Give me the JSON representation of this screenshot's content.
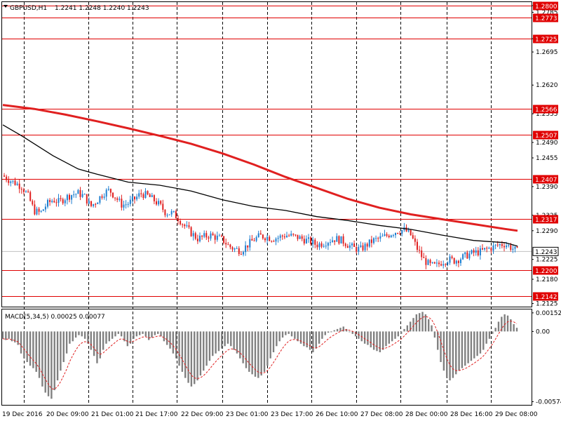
{
  "header": {
    "symbol": "GBPUSD,H1",
    "ohlc": "1.2241 1.2248 1.2240 1.2243"
  },
  "macd_label": "MACD(5,34,5) 0.00025 0.00077",
  "colors": {
    "bull_candle": "#1e7fd0",
    "bear_candle": "#e02020",
    "ma_slow": "#e02020",
    "ma_fast": "#000000",
    "level_line": "#e00000",
    "level_tag_bg": "#e00000",
    "macd_hist": "#808080",
    "macd_signal": "#e02020",
    "grid": "#000000"
  },
  "chart_data": [
    {
      "type": "candlestick",
      "symbol": "GBPUSD",
      "timeframe": "H1",
      "ylim": [
        1.2118,
        1.2808
      ],
      "y_ticks": [
        "1.2800",
        "1.2785",
        "1.2725",
        "1.2695",
        "1.2620",
        "1.2555",
        "1.2490",
        "1.2455",
        "1.2390",
        "1.2325",
        "1.2290",
        "1.2225",
        "1.2180",
        "1.2125"
      ],
      "levels": [
        "1.2800",
        "1.2773",
        "1.2725",
        "1.2566",
        "1.2507",
        "1.2407",
        "1.2317",
        "1.2200",
        "1.2142"
      ],
      "current_price": "1.2243",
      "x_labels": [
        "19 Dec 2016",
        "20 Dec 09:00",
        "21 Dec 01:00",
        "21 Dec 17:00",
        "22 Dec 09:00",
        "23 Dec 01:00",
        "23 Dec 17:00",
        "26 Dec 10:00",
        "27 Dec 08:00",
        "28 Dec 00:00",
        "28 Dec 16:00",
        "29 Dec 08:00"
      ],
      "close_path": [
        [
          0,
          1.2415
        ],
        [
          1,
          1.2405
        ],
        [
          2,
          1.2398
        ],
        [
          3,
          1.239
        ],
        [
          4,
          1.237
        ],
        [
          5,
          1.2335
        ],
        [
          6,
          1.233
        ],
        [
          7,
          1.235
        ],
        [
          8,
          1.236
        ],
        [
          9,
          1.2355
        ],
        [
          10,
          1.2365
        ],
        [
          11,
          1.2372
        ],
        [
          12,
          1.2375
        ],
        [
          13,
          1.2368
        ],
        [
          14,
          1.2345
        ],
        [
          15,
          1.2358
        ],
        [
          16,
          1.2375
        ],
        [
          17,
          1.2382
        ],
        [
          18,
          1.2365
        ],
        [
          19,
          1.2348
        ],
        [
          20,
          1.2352
        ],
        [
          21,
          1.2362
        ],
        [
          22,
          1.2374
        ],
        [
          23,
          1.237
        ],
        [
          24,
          1.236
        ],
        [
          25,
          1.2348
        ],
        [
          26,
          1.233
        ],
        [
          27,
          1.233
        ],
        [
          28,
          1.2318
        ],
        [
          29,
          1.23
        ],
        [
          30,
          1.2285
        ],
        [
          31,
          1.2272
        ],
        [
          32,
          1.2276
        ],
        [
          33,
          1.228
        ],
        [
          34,
          1.2275
        ],
        [
          35,
          1.227
        ],
        [
          36,
          1.2255
        ],
        [
          37,
          1.2248
        ],
        [
          38,
          1.2245
        ],
        [
          39,
          1.2258
        ],
        [
          40,
          1.227
        ],
        [
          41,
          1.2278
        ],
        [
          42,
          1.2276
        ],
        [
          43,
          1.2272
        ],
        [
          44,
          1.2275
        ],
        [
          45,
          1.228
        ],
        [
          46,
          1.2278
        ],
        [
          47,
          1.2275
        ],
        [
          48,
          1.227
        ],
        [
          49,
          1.2265
        ],
        [
          50,
          1.2258
        ],
        [
          51,
          1.2262
        ],
        [
          52,
          1.2268
        ],
        [
          53,
          1.2272
        ],
        [
          54,
          1.2268
        ],
        [
          55,
          1.2258
        ],
        [
          56,
          1.225
        ],
        [
          57,
          1.2248
        ],
        [
          58,
          1.2258
        ],
        [
          59,
          1.2268
        ],
        [
          60,
          1.2272
        ],
        [
          61,
          1.2278
        ],
        [
          62,
          1.2285
        ],
        [
          63,
          1.229
        ],
        [
          64,
          1.2292
        ],
        [
          65,
          1.228
        ],
        [
          66,
          1.225
        ],
        [
          67,
          1.2225
        ],
        [
          68,
          1.2212
        ],
        [
          69,
          1.221
        ],
        [
          70,
          1.222
        ],
        [
          71,
          1.2225
        ],
        [
          72,
          1.2222
        ],
        [
          73,
          1.2228
        ],
        [
          74,
          1.2235
        ],
        [
          75,
          1.224
        ],
        [
          76,
          1.2242
        ],
        [
          77,
          1.2248
        ],
        [
          78,
          1.2252
        ],
        [
          79,
          1.2258
        ],
        [
          80,
          1.226
        ],
        [
          81,
          1.2252
        ],
        [
          82,
          1.2243
        ]
      ],
      "moving_averages": [
        {
          "role": "slow",
          "color": "#e02020",
          "points": [
            [
              0,
              1.2575
            ],
            [
              5,
              1.2566
            ],
            [
              10,
              1.2553
            ],
            [
              15,
              1.2538
            ],
            [
              20,
              1.2522
            ],
            [
              25,
              1.2505
            ],
            [
              30,
              1.2487
            ],
            [
              35,
              1.2465
            ],
            [
              40,
              1.244
            ],
            [
              45,
              1.2412
            ],
            [
              50,
              1.2387
            ],
            [
              55,
              1.2362
            ],
            [
              60,
              1.2342
            ],
            [
              65,
              1.2327
            ],
            [
              70,
              1.2316
            ],
            [
              75,
              1.2305
            ],
            [
              80,
              1.2294
            ],
            [
              82,
              1.229
            ]
          ]
        },
        {
          "role": "fast",
          "color": "#000000",
          "points": [
            [
              0,
              1.253
            ],
            [
              3,
              1.2505
            ],
            [
              8,
              1.246
            ],
            [
              12,
              1.243
            ],
            [
              15,
              1.2418
            ],
            [
              20,
              1.24
            ],
            [
              25,
              1.2393
            ],
            [
              30,
              1.238
            ],
            [
              35,
              1.236
            ],
            [
              40,
              1.2345
            ],
            [
              45,
              1.2336
            ],
            [
              50,
              1.2322
            ],
            [
              55,
              1.2313
            ],
            [
              60,
              1.2302
            ],
            [
              65,
              1.2293
            ],
            [
              70,
              1.228
            ],
            [
              75,
              1.2268
            ],
            [
              80,
              1.2263
            ],
            [
              82,
              1.2255
            ]
          ]
        }
      ]
    },
    {
      "type": "bar",
      "indicator": "MACD(5,34,5)",
      "ylim": [
        -0.0006,
        0.00016
      ],
      "y_ticks": [
        "0.00152",
        "0.00",
        "-0.00574"
      ],
      "histogram": [
        -0.0006,
        -0.0007,
        -0.0006,
        -0.0008,
        -0.0009,
        -0.0011,
        -0.0018,
        -0.0022,
        -0.0025,
        -0.0028,
        -0.003,
        -0.0033,
        -0.0038,
        -0.0045,
        -0.005,
        -0.0053,
        -0.0055,
        -0.0048,
        -0.004,
        -0.0032,
        -0.0025,
        -0.0018,
        -0.001,
        -0.0008,
        -0.0005,
        -0.0003,
        -0.0004,
        -0.0006,
        -0.001,
        -0.0015,
        -0.002,
        -0.0026,
        -0.0022,
        -0.0015,
        -0.001,
        -0.0008,
        -0.0006,
        -0.0004,
        -0.0002,
        -0.0004,
        -0.0008,
        -0.0012,
        -0.001,
        -0.0006,
        -0.0004,
        -0.0003,
        -0.0002,
        -0.0004,
        -0.0007,
        -0.0005,
        -0.0003,
        -0.0002,
        -0.0004,
        -0.0008,
        -0.0011,
        -0.0014,
        -0.0018,
        -0.0022,
        -0.0028,
        -0.0033,
        -0.0038,
        -0.0042,
        -0.0045,
        -0.0043,
        -0.004,
        -0.0036,
        -0.0032,
        -0.0028,
        -0.0024,
        -0.002,
        -0.0018,
        -0.0016,
        -0.0014,
        -0.0012,
        -0.001,
        -0.0012,
        -0.0015,
        -0.0018,
        -0.0022,
        -0.0026,
        -0.003,
        -0.0033,
        -0.0035,
        -0.0037,
        -0.0038,
        -0.0036,
        -0.0033,
        -0.0028,
        -0.0022,
        -0.0017,
        -0.0012,
        -0.0008,
        -0.0005,
        -0.0003,
        -0.0002,
        -0.0004,
        -0.0006,
        -0.0008,
        -0.001,
        -0.0012,
        -0.0013,
        -0.0015,
        -0.0017,
        -0.0014,
        -0.001,
        -0.0006,
        -0.0003,
        -0.0001,
        0.0,
        0.0001,
        0.0002,
        0.0003,
        0.0004,
        0.0002,
        0.0,
        -0.0002,
        -0.0004,
        -0.0006,
        -0.0008,
        -0.001,
        -0.0011,
        -0.0013,
        -0.0015,
        -0.0016,
        -0.0017,
        -0.0015,
        -0.0012,
        -0.001,
        -0.0008,
        -0.0006,
        -0.0004,
        -0.0002,
        0.0002,
        0.0005,
        0.0008,
        0.0011,
        0.0014,
        0.0015,
        0.0016,
        0.0014,
        0.001,
        0.0005,
        -0.0005,
        -0.0015,
        -0.0025,
        -0.0032,
        -0.0038,
        -0.004,
        -0.0038,
        -0.0035,
        -0.0032,
        -0.003,
        -0.0028,
        -0.0026,
        -0.0024,
        -0.0022,
        -0.002,
        -0.0018,
        -0.0015,
        -0.001,
        -0.0006,
        -0.0002,
        0.0003,
        0.0008,
        0.0012,
        0.0014,
        0.0013,
        0.001,
        0.0006,
        0.0003
      ]
    }
  ]
}
